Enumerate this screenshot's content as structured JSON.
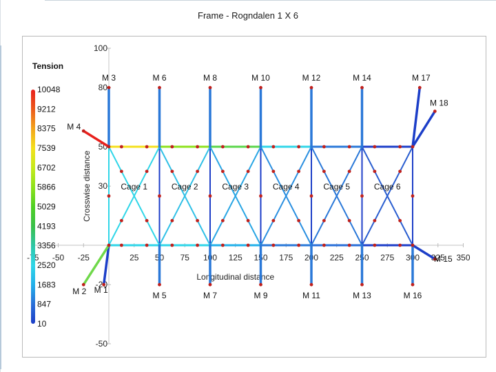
{
  "title": "Frame - Rogndalen 1 X 6",
  "chart_data": {
    "type": "frame-diagram",
    "xlabel": "Longitudinal distance",
    "ylabel": "Crosswise distance",
    "xlim": [
      -75,
      350
    ],
    "ylim": [
      -50,
      100
    ],
    "x_ticks": [
      -75,
      -50,
      -25,
      25,
      50,
      75,
      100,
      125,
      150,
      175,
      200,
      225,
      250,
      275,
      300,
      325,
      350
    ],
    "y_ticks": [
      -50,
      -20,
      30,
      50,
      80,
      100
    ],
    "legend": {
      "title": "Tension",
      "values": [
        "10048",
        "9212",
        "8375",
        "7539",
        "6702",
        "5866",
        "5029",
        "4193",
        "3356",
        "2520",
        "1683",
        "847",
        "10"
      ],
      "colors": [
        "#e8201c",
        "#ec5a1c",
        "#f3a51c",
        "#f4e01c",
        "#c6ea1c",
        "#8ee21c",
        "#4fd024",
        "#3ac04a",
        "#2ec6a6",
        "#30d6e8",
        "#22b0ea",
        "#2a6fd8",
        "#1c3ec8"
      ]
    },
    "moorings": [
      {
        "name": "M 1",
        "x1": 0,
        "y1": 0,
        "x2": -5,
        "y2": -20,
        "color": "#1c3ec8"
      },
      {
        "name": "M 2",
        "x1": 0,
        "y1": 0,
        "x2": -25,
        "y2": -20,
        "color": "#6fd84a"
      },
      {
        "name": "M 3",
        "x1": 0,
        "y1": 50,
        "x2": 0,
        "y2": 80,
        "color": "#2a78d8"
      },
      {
        "name": "M 4",
        "x1": 0,
        "y1": 50,
        "x2": -25,
        "y2": 58,
        "color": "#e8201c"
      },
      {
        "name": "M 5",
        "x1": 50,
        "y1": 0,
        "x2": 50,
        "y2": -20,
        "color": "#2a78d8"
      },
      {
        "name": "M 6",
        "x1": 50,
        "y1": 50,
        "x2": 50,
        "y2": 80,
        "color": "#2a78d8"
      },
      {
        "name": "M 7",
        "x1": 100,
        "y1": 0,
        "x2": 100,
        "y2": -20,
        "color": "#2a78d8"
      },
      {
        "name": "M 8",
        "x1": 100,
        "y1": 50,
        "x2": 100,
        "y2": 80,
        "color": "#2a78d8"
      },
      {
        "name": "M 9",
        "x1": 150,
        "y1": 0,
        "x2": 150,
        "y2": -20,
        "color": "#2a78d8"
      },
      {
        "name": "M 10",
        "x1": 150,
        "y1": 50,
        "x2": 150,
        "y2": 80,
        "color": "#2a78d8"
      },
      {
        "name": "M 11",
        "x1": 200,
        "y1": 0,
        "x2": 200,
        "y2": -20,
        "color": "#2a78d8"
      },
      {
        "name": "M 12",
        "x1": 200,
        "y1": 50,
        "x2": 200,
        "y2": 80,
        "color": "#2a78d8"
      },
      {
        "name": "M 13",
        "x1": 250,
        "y1": 0,
        "x2": 250,
        "y2": -20,
        "color": "#2a78d8"
      },
      {
        "name": "M 14",
        "x1": 250,
        "y1": 50,
        "x2": 250,
        "y2": 80,
        "color": "#2a78d8"
      },
      {
        "name": "M 15",
        "x1": 300,
        "y1": 0,
        "x2": 322,
        "y2": -7,
        "color": "#1c3ec8"
      },
      {
        "name": "M 16",
        "x1": 300,
        "y1": 0,
        "x2": 300,
        "y2": -20,
        "color": "#2a78d8"
      },
      {
        "name": "M 17",
        "x1": 300,
        "y1": 50,
        "x2": 307,
        "y2": 80,
        "color": "#1c3ec8"
      },
      {
        "name": "M 18",
        "x1": 300,
        "y1": 50,
        "x2": 322,
        "y2": 68,
        "color": "#1c3ec8"
      }
    ],
    "cages": [
      {
        "name": "Cage 1",
        "x": 25,
        "y": 30
      },
      {
        "name": "Cage 2",
        "x": 75,
        "y": 30
      },
      {
        "name": "Cage 3",
        "x": 125,
        "y": 30
      },
      {
        "name": "Cage 4",
        "x": 175,
        "y": 30
      },
      {
        "name": "Cage 5",
        "x": 225,
        "y": 30
      },
      {
        "name": "Cage 6",
        "x": 275,
        "y": 30
      }
    ],
    "top_line": {
      "y": 50,
      "segments": [
        {
          "x1": 0,
          "x2": 50,
          "color": "#f4e01c"
        },
        {
          "x1": 50,
          "x2": 100,
          "color": "#8ee21c"
        },
        {
          "x1": 100,
          "x2": 150,
          "color": "#5ad64a"
        },
        {
          "x1": 150,
          "x2": 200,
          "color": "#30d6e8"
        },
        {
          "x1": 200,
          "x2": 250,
          "color": "#2a78d8"
        },
        {
          "x1": 250,
          "x2": 300,
          "color": "#1c3ec8"
        }
      ]
    },
    "bottom_line": {
      "y": 0,
      "segments": [
        {
          "x1": 0,
          "x2": 50,
          "color": "#30d6e8"
        },
        {
          "x1": 50,
          "x2": 100,
          "color": "#30d6e8"
        },
        {
          "x1": 100,
          "x2": 150,
          "color": "#22b0ea"
        },
        {
          "x1": 150,
          "x2": 200,
          "color": "#2a78d8"
        },
        {
          "x1": 200,
          "x2": 250,
          "color": "#2a6fd8"
        },
        {
          "x1": 250,
          "x2": 300,
          "color": "#1c3ec8"
        }
      ]
    }
  }
}
